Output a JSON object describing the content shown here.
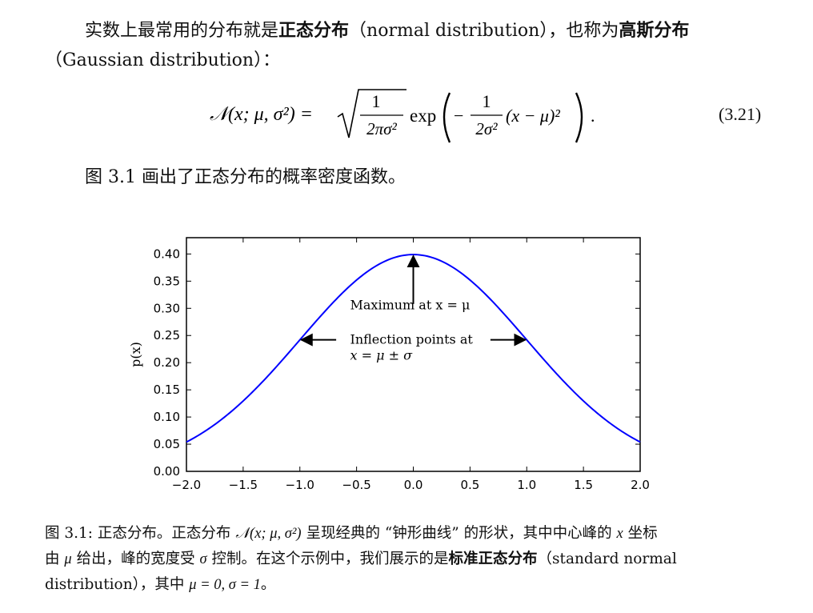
{
  "intro": {
    "line1_text": "实数上最常用的分布就是",
    "line1_bold1": "正态分布",
    "line1_paren": "（normal distribution），也称为",
    "line1_bold2": "高斯分布",
    "line2_text": "（Gaussian distribution）："
  },
  "equation": {
    "lhs": "𝒩(x; μ, σ²) =",
    "frac1_num": "1",
    "frac1_den": "2πσ²",
    "exp_word": "exp",
    "frac2_num": "1",
    "frac2_den": "2σ²",
    "tail": "(x − μ)²",
    "period": ".",
    "label": "(3.21)"
  },
  "after_eq": "图 3.1 画出了正态分布的概率密度函数。",
  "chart_data": {
    "type": "line",
    "ylabel": "p(x)",
    "xlim": [
      -2.0,
      2.0
    ],
    "ylim": [
      0.0,
      0.43
    ],
    "x_ticks": [
      "−2.0",
      "−1.5",
      "−1.0",
      "−0.5",
      "0.0",
      "0.5",
      "1.0",
      "1.5",
      "2.0"
    ],
    "x_tick_values": [
      -2.0,
      -1.5,
      -1.0,
      -0.5,
      0.0,
      0.5,
      1.0,
      1.5,
      2.0
    ],
    "y_ticks": [
      "0.00",
      "0.05",
      "0.10",
      "0.15",
      "0.20",
      "0.25",
      "0.30",
      "0.35",
      "0.40"
    ],
    "y_tick_values": [
      0.0,
      0.05,
      0.1,
      0.15,
      0.2,
      0.25,
      0.3,
      0.35,
      0.4
    ],
    "series": [
      {
        "color": "#0000ff",
        "function": "normal_pdf",
        "mu": 0,
        "sigma": 1,
        "x": [
          -2.0,
          -1.5,
          -1.0,
          -0.5,
          0.0,
          0.5,
          1.0,
          1.5,
          2.0
        ],
        "values": [
          0.054,
          0.1295,
          0.242,
          0.3521,
          0.3989,
          0.3521,
          0.242,
          0.1295,
          0.054
        ]
      }
    ],
    "annotations": {
      "max_label": "Maximum at x = μ",
      "max_point": [
        0.0,
        0.3989
      ],
      "inflection_label_1": "Inflection points at",
      "inflection_label_2": "x = μ ± σ",
      "inflection_points": [
        [
          -1.0,
          0.242
        ],
        [
          1.0,
          0.242
        ]
      ]
    }
  },
  "caption": {
    "line1_a": "图 3.1: 正态分布。正态分布",
    "line1_math": "𝒩(x; μ, σ²)",
    "line1_b": "呈现经典的 “钟形曲线” 的形状，其中中心峰的",
    "line1_math2": "x",
    "line1_c": "坐标",
    "line2_a": "由",
    "line2_mu": "μ",
    "line2_b": "给出，峰的宽度受",
    "line2_sigma": "σ",
    "line2_c": "控制。在这个示例中，我们展示的是",
    "line2_bold": "标准正态分布",
    "line2_d": "（standard normal",
    "line3_a": "distribution），其中",
    "line3_math": "μ = 0, σ = 1",
    "line3_b": "。"
  }
}
